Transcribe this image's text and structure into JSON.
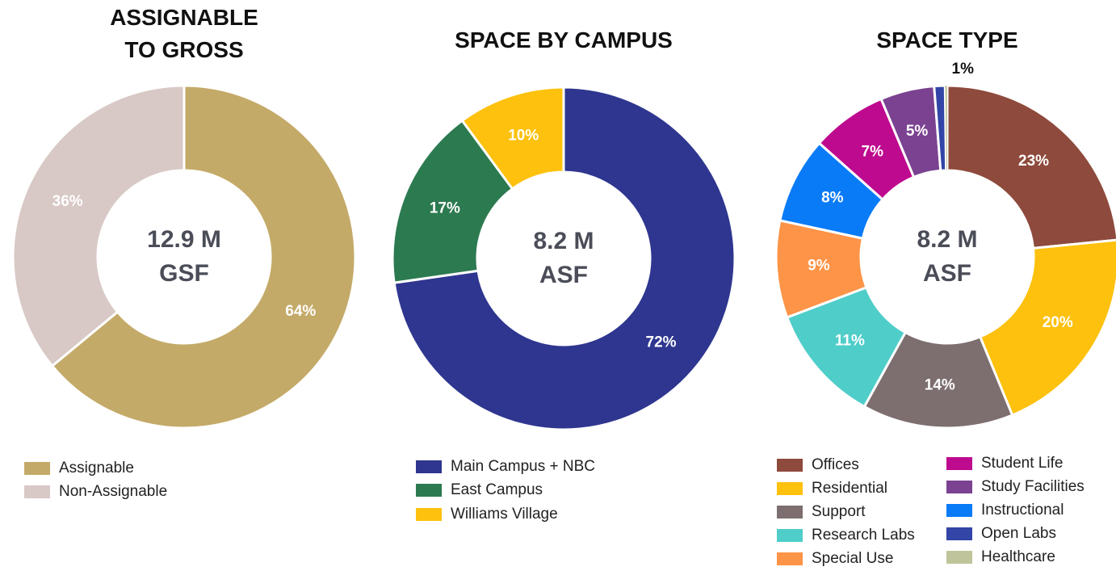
{
  "chart_data": [
    {
      "type": "donut",
      "title": "ASSIGNABLE TO GROSS",
      "center_label": [
        "12.9 M",
        "GSF"
      ],
      "categories": [
        "Assignable",
        "Non-Assignable"
      ],
      "values": [
        64,
        36
      ],
      "value_labels": [
        "64%",
        "36%"
      ],
      "colors": [
        "#c4aa68",
        "#d8c9c6"
      ]
    },
    {
      "type": "donut",
      "title": "SPACE BY CAMPUS",
      "center_label": [
        "8.2 M",
        "ASF"
      ],
      "categories": [
        "Main Campus + NBC",
        "East Campus",
        "Williams Village"
      ],
      "values": [
        72,
        17,
        10
      ],
      "value_labels": [
        "72%",
        "17%",
        "10%"
      ],
      "colors": [
        "#2e368f",
        "#2c7a50",
        "#fdc10e"
      ]
    },
    {
      "type": "donut",
      "title": "SPACE TYPE",
      "center_label": [
        "8.2 M",
        "ASF"
      ],
      "categories": [
        "Offices",
        "Residential",
        "Support",
        "Research Labs",
        "Special Use",
        "Instructional",
        "Student Life",
        "Study Facilities",
        "Open Labs",
        "Healthcare"
      ],
      "values": [
        23,
        20,
        14,
        11,
        9,
        8,
        7,
        5,
        1,
        0.2
      ],
      "value_labels": [
        "23%",
        "20%",
        "14%",
        "11%",
        "9%",
        "8%",
        "7%",
        "5%",
        "1%",
        null
      ],
      "colors": [
        "#8e4a3c",
        "#fdc10e",
        "#7d6e70",
        "#4fcdc9",
        "#fd9447",
        "#0a7bf7",
        "#be0a8f",
        "#7b4291",
        "#3345a6",
        "#c0c49a"
      ]
    }
  ]
}
